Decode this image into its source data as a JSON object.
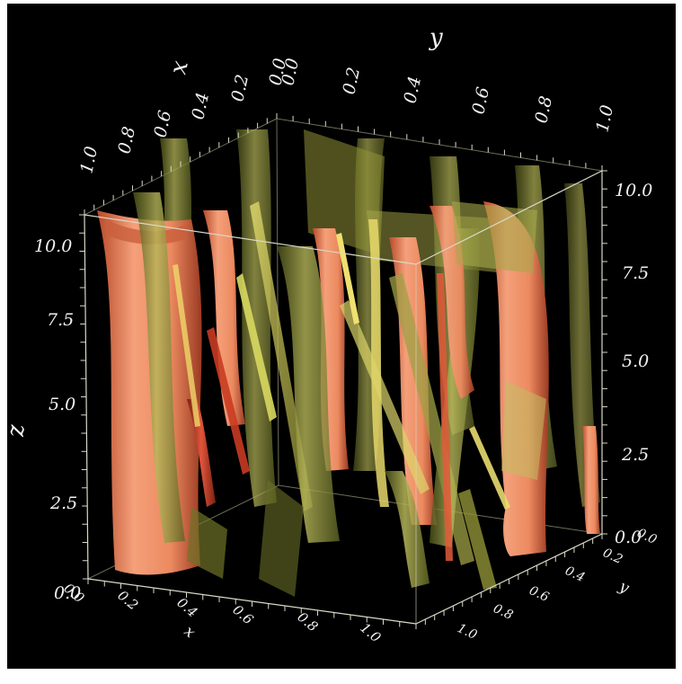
{
  "colors": {
    "background": "#000000",
    "sheet_light": "#c7c770",
    "sheet_dark": "#5e6420",
    "sheet_orange": "#f08a5d",
    "sheet_red": "#c2462c",
    "axis": "#d9d9c8"
  },
  "axes": {
    "x": {
      "title": "x",
      "top_ticks": [
        "1.0",
        "0.8",
        "0.6",
        "0.4",
        "0.2",
        "0.0"
      ],
      "bottom_ticks": [
        "0.0",
        "0.2",
        "0.4",
        "0.6",
        "0.8",
        "1.0"
      ],
      "bottom_title": "x"
    },
    "y": {
      "title": "y",
      "top_ticks": [
        "0.0",
        "0.2",
        "0.4",
        "0.6",
        "0.8",
        "1.0"
      ],
      "right_ticks": [
        "0.0",
        "0.2",
        "0.4",
        "0.6",
        "0.8",
        "1.0"
      ],
      "right_title": "y"
    },
    "z": {
      "title": "z",
      "left_ticks": [
        "0.0",
        "2.5",
        "5.0",
        "7.5",
        "10.0"
      ],
      "right_ticks": [
        "0.0",
        "2.5",
        "5.0",
        "7.5",
        "10.0"
      ]
    }
  }
}
